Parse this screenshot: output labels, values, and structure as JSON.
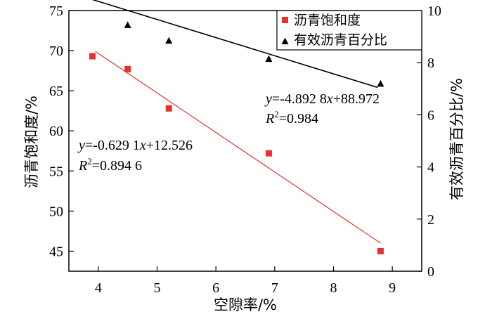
{
  "chart_data": {
    "type": "scatter",
    "x": [
      3.9,
      4.5,
      5.2,
      6.9,
      8.8
    ],
    "xlabel": "空隙率/%",
    "ylabel_left": "沥青饱和度/%",
    "ylabel_right": "有效沥青百分比/%",
    "xlim": [
      3.5,
      9.5
    ],
    "xticks": [
      4,
      5,
      6,
      7,
      8,
      9
    ],
    "ylim_left": [
      42.5,
      75
    ],
    "yticks_left": [
      45,
      50,
      55,
      60,
      65,
      70,
      75
    ],
    "ylim_right": [
      0,
      10
    ],
    "yticks_right": [
      0,
      2,
      4,
      6,
      8,
      10
    ],
    "grid": false,
    "legend_position": "top-right",
    "series": [
      {
        "name": "沥青饱和度",
        "axis": "left",
        "marker": "square",
        "color": "#e8312f",
        "values": [
          69.3,
          67.7,
          62.8,
          57.2,
          45.0
        ],
        "fit": {
          "x_range": [
            3.95,
            8.8
          ],
          "y_range": [
            69.9,
            46.0
          ],
          "equation": {
            "y_var": "y",
            "eq_part1": "=-0.629 1",
            "x_var": "x",
            "eq_part2": "+12.526",
            "r_var": "R",
            "r_exp": "2",
            "r_value": "=0.894 6"
          }
        }
      },
      {
        "name": "有效沥青百分比",
        "axis": "right",
        "marker": "triangle",
        "color": "#000000",
        "values": [
          9.45,
          8.85,
          8.15,
          7.2
        ],
        "x": [
          4.5,
          5.2,
          6.9,
          8.8
        ],
        "fit": {
          "x_range": [
            3.5,
            8.75
          ],
          "y_range": [
            10.7,
            7.05
          ],
          "equation": {
            "y_var": "y",
            "eq_part1": "=-4.892 8",
            "x_var": "x",
            "eq_part2": "+88.972",
            "r_var": "R",
            "r_exp": "2",
            "r_value": "=0.984"
          }
        }
      }
    ]
  }
}
